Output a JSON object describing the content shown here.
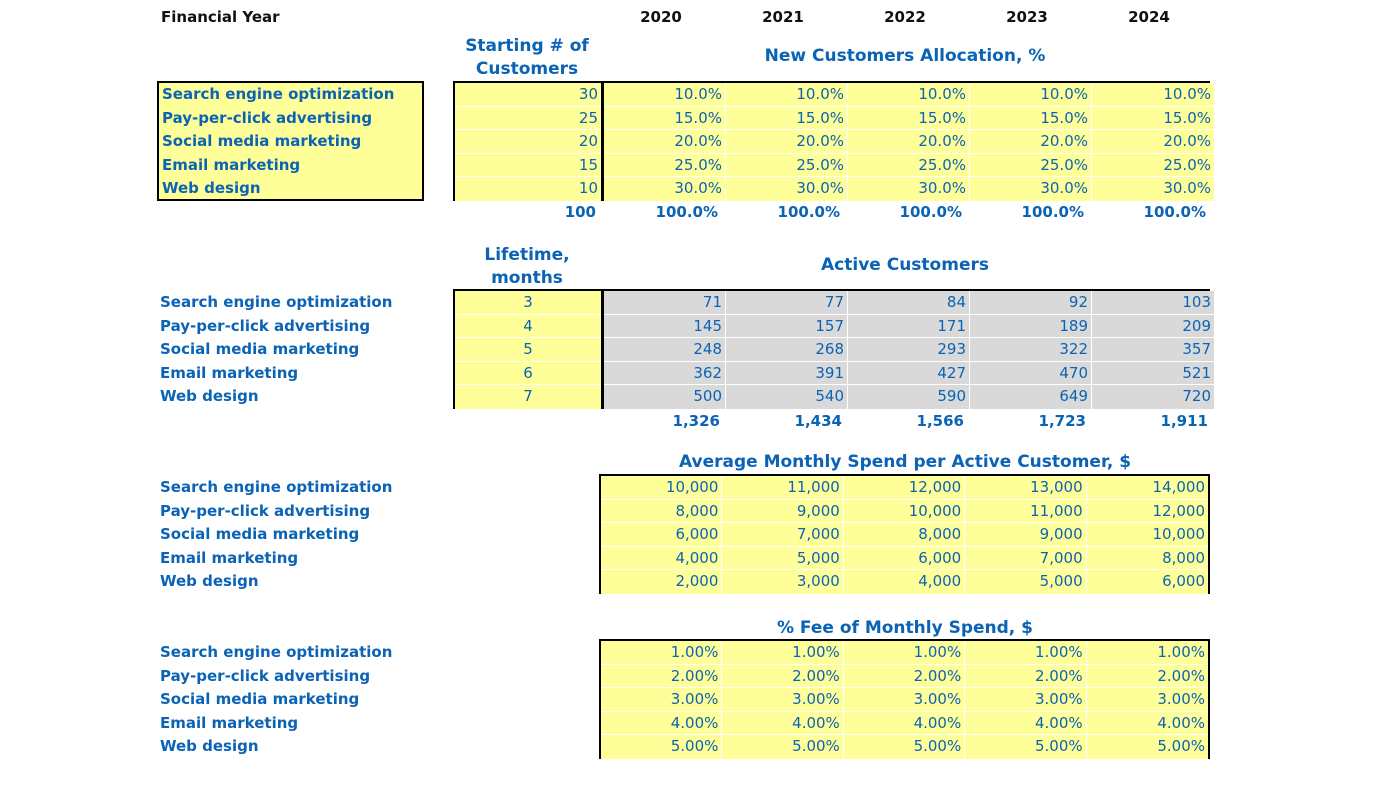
{
  "header": {
    "financial_year_label": "Financial Year",
    "years": [
      "2020",
      "2021",
      "2022",
      "2023",
      "2024"
    ]
  },
  "channels": [
    "Search engine optimization",
    "Pay-per-click advertising",
    "Social media marketing",
    "Email marketing",
    "Web design"
  ],
  "allocation": {
    "starting_title_line1": "Starting # of",
    "starting_title_line2": "Customers",
    "title": "New Customers Allocation, %",
    "starting_customers": [
      "30",
      "25",
      "20",
      "15",
      "10"
    ],
    "rows": [
      [
        "10.0%",
        "10.0%",
        "10.0%",
        "10.0%",
        "10.0%"
      ],
      [
        "15.0%",
        "15.0%",
        "15.0%",
        "15.0%",
        "15.0%"
      ],
      [
        "20.0%",
        "20.0%",
        "20.0%",
        "20.0%",
        "20.0%"
      ],
      [
        "25.0%",
        "25.0%",
        "25.0%",
        "25.0%",
        "25.0%"
      ],
      [
        "30.0%",
        "30.0%",
        "30.0%",
        "30.0%",
        "30.0%"
      ]
    ],
    "starting_total": "100",
    "totals": [
      "100.0%",
      "100.0%",
      "100.0%",
      "100.0%",
      "100.0%"
    ]
  },
  "active": {
    "lifetime_title_line1": "Lifetime,",
    "lifetime_title_line2": "months",
    "title": "Active Customers",
    "lifetime": [
      "3",
      "4",
      "5",
      "6",
      "7"
    ],
    "rows": [
      [
        "71",
        "77",
        "84",
        "92",
        "103"
      ],
      [
        "145",
        "157",
        "171",
        "189",
        "209"
      ],
      [
        "248",
        "268",
        "293",
        "322",
        "357"
      ],
      [
        "362",
        "391",
        "427",
        "470",
        "521"
      ],
      [
        "500",
        "540",
        "590",
        "649",
        "720"
      ]
    ],
    "totals": [
      "1,326",
      "1,434",
      "1,566",
      "1,723",
      "1,911"
    ]
  },
  "spend": {
    "title": "Average Monthly Spend per Active Customer, $",
    "rows": [
      [
        "10,000",
        "11,000",
        "12,000",
        "13,000",
        "14,000"
      ],
      [
        "8,000",
        "9,000",
        "10,000",
        "11,000",
        "12,000"
      ],
      [
        "6,000",
        "7,000",
        "8,000",
        "9,000",
        "10,000"
      ],
      [
        "4,000",
        "5,000",
        "6,000",
        "7,000",
        "8,000"
      ],
      [
        "2,000",
        "3,000",
        "4,000",
        "5,000",
        "6,000"
      ]
    ]
  },
  "fee": {
    "title": "% Fee of Monthly Spend, $",
    "rows": [
      [
        "1.00%",
        "1.00%",
        "1.00%",
        "1.00%",
        "1.00%"
      ],
      [
        "2.00%",
        "2.00%",
        "2.00%",
        "2.00%",
        "2.00%"
      ],
      [
        "3.00%",
        "3.00%",
        "3.00%",
        "3.00%",
        "3.00%"
      ],
      [
        "4.00%",
        "4.00%",
        "4.00%",
        "4.00%",
        "4.00%"
      ],
      [
        "5.00%",
        "5.00%",
        "5.00%",
        "5.00%",
        "5.00%"
      ]
    ]
  },
  "colors": {
    "input_yellow": "#ffff99",
    "calc_gray": "#d9d9d9",
    "text_blue": "#0a63b4"
  }
}
